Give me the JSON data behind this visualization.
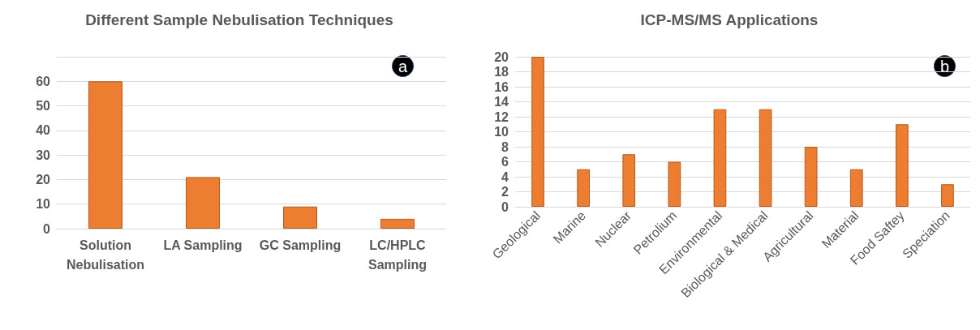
{
  "chart_data": [
    {
      "type": "bar",
      "title": "Different Sample Nebulisation Techniques",
      "categories": [
        "Solution\nNebulisation",
        "LA Sampling",
        "GC Sampling",
        "LC/HPLC\nSampling"
      ],
      "values": [
        60,
        21,
        9,
        4
      ],
      "color": "#ed7d31",
      "ylim": [
        0,
        70
      ],
      "yticks": [
        0,
        10,
        20,
        30,
        40,
        50,
        60,
        {
          "value": 70,
          "label": null
        }
      ],
      "grid": "y",
      "annotations": [
        "a"
      ]
    },
    {
      "type": "bar",
      "title": "ICP-MS/MS Applications",
      "categories": [
        "Geological",
        "Marine",
        "Nuclear",
        "Petrolium",
        "Environmental",
        "Biological & Medical",
        "Agricultural",
        "Material",
        "Food Saftey",
        "Speciation"
      ],
      "values": [
        20,
        5,
        7,
        6,
        13,
        13,
        8,
        5,
        11,
        3
      ],
      "color": "#ed7d31",
      "ylim": [
        0,
        20
      ],
      "yticks": [
        0,
        2,
        4,
        6,
        8,
        10,
        12,
        14,
        16,
        18,
        20
      ],
      "grid": "y",
      "annotations": [
        "b"
      ]
    }
  ]
}
